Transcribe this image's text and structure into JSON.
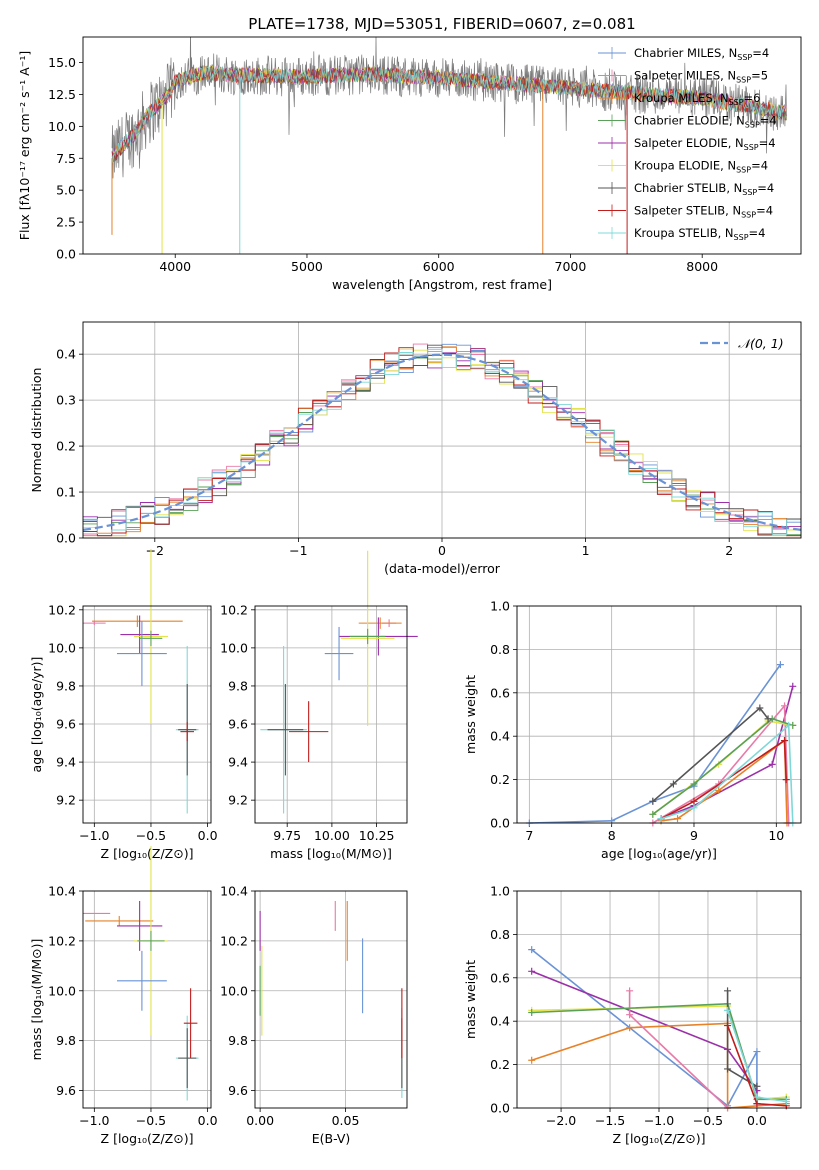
{
  "chart_data": [
    {
      "id": "spectrum",
      "type": "line",
      "title": "PLATE=1738, MJD=53051, FIBERID=0607, z=0.081",
      "xlabel": "wavelength [Angstrom, rest frame]",
      "ylabel": "Flux [fλ10⁻¹⁷ erg cm⁻² s⁻¹ A⁻¹]",
      "xlim": [
        3300,
        8750
      ],
      "ylim": [
        0,
        17
      ],
      "xticks": [
        4000,
        5000,
        6000,
        7000,
        8000
      ],
      "yticks": [
        0.0,
        2.5,
        5.0,
        7.5,
        10.0,
        12.5,
        15.0
      ],
      "grid": false,
      "legend_position": "top-right",
      "legend": [
        {
          "base": "Chabrier MILES, N",
          "sub": "SSP",
          "tail": "=4",
          "color": "#6a93d6"
        },
        {
          "base": "Salpeter MILES, N",
          "sub": "SSP",
          "tail": "=5",
          "color": "#e879a8"
        },
        {
          "base": "Kroupa MILES, N",
          "sub": "SSP",
          "tail": "=6",
          "color": "#e5822a"
        },
        {
          "base": "Chabrier ELODIE, N",
          "sub": "SSP",
          "tail": "=4",
          "color": "#5aa05a"
        },
        {
          "base": "Salpeter ELODIE, N",
          "sub": "SSP",
          "tail": "=4",
          "color": "#9b30a8"
        },
        {
          "base": "Kroupa ELODIE, N",
          "sub": "SSP",
          "tail": "=4",
          "color": "#e3e34a"
        },
        {
          "base": "Chabrier STELIB, N",
          "sub": "SSP",
          "tail": "=4",
          "color": "#555555"
        },
        {
          "base": "Salpeter STELIB, N",
          "sub": "SSP",
          "tail": "=4",
          "color": "#c01d1d"
        },
        {
          "base": "Kroupa STELIB, N",
          "sub": "SSP",
          "tail": "=4",
          "color": "#7fd8d8"
        }
      ],
      "continuum": [
        [
          3520,
          7.5
        ],
        [
          3600,
          8.5
        ],
        [
          3700,
          9.5
        ],
        [
          3800,
          11.0
        ],
        [
          3950,
          12.5
        ],
        [
          4000,
          13.5
        ],
        [
          4200,
          14.2
        ],
        [
          4500,
          14.0
        ],
        [
          5000,
          13.9
        ],
        [
          5500,
          14.1
        ],
        [
          6000,
          13.8
        ],
        [
          6500,
          13.4
        ],
        [
          7000,
          13.0
        ],
        [
          7500,
          12.6
        ],
        [
          8000,
          12.2
        ],
        [
          8500,
          11.3
        ],
        [
          8640,
          11.0
        ]
      ],
      "dropouts": [
        [
          3520,
          1.5,
          "#e5822a"
        ],
        [
          3900,
          0.0,
          "#e3e34a"
        ],
        [
          4490,
          0.0,
          "#7fd8d8"
        ],
        [
          6790,
          0.0,
          "#e5822a"
        ],
        [
          7430,
          0.0,
          "#c01d1d"
        ]
      ]
    },
    {
      "id": "residuals",
      "type": "line",
      "xlabel": "(data-model)/error",
      "ylabel": "Normed distribution",
      "xlim": [
        -2.5,
        2.5
      ],
      "ylim": [
        0,
        0.47
      ],
      "xticks": [
        -2,
        -1,
        0,
        1,
        2
      ],
      "yticks": [
        0.0,
        0.1,
        0.2,
        0.3,
        0.4
      ],
      "grid": true,
      "legend": "𝒩(0, 1)",
      "legend_position": "top-right",
      "gaussian": {
        "mean": 0,
        "sigma": 1,
        "color": "#6a93d6"
      }
    },
    {
      "id": "age-vs-z",
      "type": "scatter",
      "xlabel": "Z [log₁₀(Z/Z⊙)]",
      "ylabel": "age  [log₁₀(age/yr)]",
      "xlim": [
        -1.1,
        0.03
      ],
      "ylim": [
        9.08,
        10.22
      ],
      "xticks": [
        -1.0,
        -0.5,
        0.0
      ],
      "yticks": [
        9.2,
        9.4,
        9.6,
        9.8,
        10.0,
        10.2
      ],
      "grid": true,
      "points": [
        {
          "x": -1.0,
          "y": 10.13,
          "xerr": 0.1,
          "yerr": 0.01,
          "color": "#e879a8"
        },
        {
          "x": -0.62,
          "y": 10.14,
          "xerr": 0.4,
          "yerr": 0.03,
          "color": "#e5822a"
        },
        {
          "x": -0.6,
          "y": 10.07,
          "xerr": 0.17,
          "yerr": 0.1,
          "color": "#9b30a8"
        },
        {
          "x": -0.5,
          "y": 10.06,
          "xerr": 0.15,
          "yerr": 0.46,
          "color": "#e3e34a"
        },
        {
          "x": -0.5,
          "y": 10.05,
          "xerr": 0.1,
          "yerr": 0.04,
          "color": "#5aa05a"
        },
        {
          "x": -0.58,
          "y": 9.97,
          "xerr": 0.22,
          "yerr": 0.17,
          "color": "#6a93d6"
        },
        {
          "x": -0.18,
          "y": 9.57,
          "xerr": 0.1,
          "yerr": 0.44,
          "color": "#7fd8d8"
        },
        {
          "x": -0.18,
          "y": 9.57,
          "xerr": 0.08,
          "yerr": 0.24,
          "color": "#555555"
        },
        {
          "x": -0.18,
          "y": 9.56,
          "xerr": 0.06,
          "yerr": 0.05,
          "color": "#c01d1d"
        }
      ]
    },
    {
      "id": "age-vs-mass",
      "type": "scatter",
      "xlabel": "mass [log₁₀(M/M⊙)]",
      "ylabel": "",
      "xlim": [
        9.57,
        10.42
      ],
      "ylim": [
        9.08,
        10.22
      ],
      "xticks": [
        9.75,
        10.0,
        10.25
      ],
      "yticks": [
        9.2,
        9.4,
        9.6,
        9.8,
        10.0,
        10.2
      ],
      "grid": true,
      "points": [
        {
          "x": 10.32,
          "y": 10.13,
          "xerr": 0.04,
          "yerr": 0.02,
          "color": "#e879a8"
        },
        {
          "x": 10.27,
          "y": 10.13,
          "xerr": 0.12,
          "yerr": 0.03,
          "color": "#e5822a"
        },
        {
          "x": 10.26,
          "y": 10.06,
          "xerr": 0.22,
          "yerr": 0.1,
          "color": "#9b30a8"
        },
        {
          "x": 10.2,
          "y": 10.05,
          "xerr": 0.15,
          "yerr": 0.46,
          "color": "#e3e34a"
        },
        {
          "x": 10.2,
          "y": 10.06,
          "xerr": 0.1,
          "yerr": 0.04,
          "color": "#5aa05a"
        },
        {
          "x": 10.04,
          "y": 9.97,
          "xerr": 0.08,
          "yerr": 0.14,
          "color": "#6a93d6"
        },
        {
          "x": 9.73,
          "y": 9.57,
          "xerr": 0.13,
          "yerr": 0.44,
          "color": "#7fd8d8"
        },
        {
          "x": 9.74,
          "y": 9.57,
          "xerr": 0.1,
          "yerr": 0.24,
          "color": "#555555"
        },
        {
          "x": 9.87,
          "y": 9.56,
          "xerr": 0.11,
          "yerr": 0.16,
          "color": "#c01d1d"
        }
      ]
    },
    {
      "id": "massweight-vs-age",
      "type": "line",
      "xlabel": "age  [log₁₀(age/yr)]",
      "ylabel": "mass weight",
      "xlim": [
        6.85,
        10.3
      ],
      "ylim": [
        0,
        1.0
      ],
      "xticks": [
        7,
        8,
        9,
        10
      ],
      "yticks": [
        0.0,
        0.2,
        0.4,
        0.6,
        0.8,
        1.0
      ],
      "grid": true,
      "series": [
        {
          "color": "#6a93d6",
          "x": [
            7.0,
            8.0,
            8.5,
            9.0,
            10.05
          ],
          "y": [
            0.0,
            0.01,
            0.1,
            0.17,
            0.73
          ]
        },
        {
          "color": "#9b30a8",
          "x": [
            8.6,
            9.0,
            9.95,
            10.2
          ],
          "y": [
            0.02,
            0.08,
            0.27,
            0.63
          ]
        },
        {
          "color": "#e5822a",
          "x": [
            8.6,
            8.8,
            9.3,
            10.1,
            10.13
          ],
          "y": [
            0.01,
            0.02,
            0.15,
            0.38,
            0.0
          ]
        },
        {
          "color": "#e879a8",
          "x": [
            8.5,
            9.3,
            10.1,
            10.15
          ],
          "y": [
            0.0,
            0.18,
            0.54,
            0.0
          ]
        },
        {
          "color": "#e3e34a",
          "x": [
            8.5,
            9.3,
            9.9,
            10.2
          ],
          "y": [
            0.04,
            0.27,
            0.47,
            0.45
          ]
        },
        {
          "color": "#5aa05a",
          "x": [
            8.5,
            9.0,
            9.95,
            10.2
          ],
          "y": [
            0.04,
            0.18,
            0.48,
            0.45
          ]
        },
        {
          "color": "#555555",
          "x": [
            8.5,
            8.75,
            9.8,
            9.9
          ],
          "y": [
            0.1,
            0.18,
            0.53,
            0.48
          ]
        },
        {
          "color": "#c01d1d",
          "x": [
            8.6,
            9.0,
            10.1,
            10.12
          ],
          "y": [
            0.02,
            0.1,
            0.38,
            0.2
          ]
        },
        {
          "color": "#7fd8d8",
          "x": [
            8.6,
            9.0,
            10.15,
            10.2
          ],
          "y": [
            0.02,
            0.07,
            0.45,
            0.0
          ]
        }
      ]
    },
    {
      "id": "mass-vs-z",
      "type": "scatter",
      "xlabel": "Z [log₁₀(Z/Z⊙)]",
      "ylabel": "mass [log₁₀(M/M⊙)]",
      "xlim": [
        -1.1,
        0.03
      ],
      "ylim": [
        9.53,
        10.4
      ],
      "xticks": [
        -1.0,
        -0.5,
        0.0
      ],
      "yticks": [
        9.6,
        9.8,
        10.0,
        10.2,
        10.4
      ],
      "grid": true,
      "points": [
        {
          "x": -0.98,
          "y": 10.31,
          "xerr": 0.12,
          "yerr": 0.0,
          "color": "#e879a8"
        },
        {
          "x": -0.78,
          "y": 10.28,
          "xerr": 0.3,
          "yerr": 0.02,
          "color": "#e5822a"
        },
        {
          "x": -0.6,
          "y": 10.26,
          "xerr": 0.2,
          "yerr": 0.1,
          "color": "#9b30a8"
        },
        {
          "x": -0.5,
          "y": 10.2,
          "xerr": 0.15,
          "yerr": 0.38,
          "color": "#e3e34a"
        },
        {
          "x": -0.5,
          "y": 10.2,
          "xerr": 0.12,
          "yerr": 0.04,
          "color": "#5aa05a"
        },
        {
          "x": -0.58,
          "y": 10.04,
          "xerr": 0.22,
          "yerr": 0.12,
          "color": "#6a93d6"
        },
        {
          "x": -0.18,
          "y": 9.73,
          "xerr": 0.1,
          "yerr": 0.17,
          "color": "#7fd8d8"
        },
        {
          "x": -0.18,
          "y": 9.73,
          "xerr": 0.08,
          "yerr": 0.12,
          "color": "#555555"
        },
        {
          "x": -0.15,
          "y": 9.87,
          "xerr": 0.06,
          "yerr": 0.14,
          "color": "#c01d1d"
        }
      ]
    },
    {
      "id": "mass-vs-ebv",
      "type": "scatter",
      "xlabel": "E(B-V)",
      "ylabel": "",
      "xlim": [
        -0.003,
        0.086
      ],
      "ylim": [
        9.53,
        10.4
      ],
      "xticks": [
        0.0,
        0.05
      ],
      "xticklabels": [
        "0.00",
        "0.05"
      ],
      "yticks": [
        9.6,
        9.8,
        10.0,
        10.2,
        10.4
      ],
      "grid": true,
      "points": [
        {
          "x": 0.044,
          "y": 10.3,
          "xerr": 0.0,
          "yerr": 0.06,
          "color": "#e879a8"
        },
        {
          "x": 0.051,
          "y": 10.24,
          "xerr": 0.0,
          "yerr": 0.12,
          "color": "#e5822a"
        },
        {
          "x": 0.0,
          "y": 10.24,
          "xerr": 0.0,
          "yerr": 0.08,
          "color": "#9b30a8"
        },
        {
          "x": 0.001,
          "y": 10.0,
          "xerr": 0.0,
          "yerr": 0.18,
          "color": "#e3e34a"
        },
        {
          "x": 0.0,
          "y": 10.0,
          "xerr": 0.0,
          "yerr": 0.1,
          "color": "#5aa05a"
        },
        {
          "x": 0.06,
          "y": 10.06,
          "xerr": 0.0,
          "yerr": 0.15,
          "color": "#6a93d6"
        },
        {
          "x": 0.083,
          "y": 9.75,
          "xerr": 0.0,
          "yerr": 0.18,
          "color": "#7fd8d8"
        },
        {
          "x": 0.083,
          "y": 9.75,
          "xerr": 0.0,
          "yerr": 0.14,
          "color": "#555555"
        },
        {
          "x": 0.083,
          "y": 9.87,
          "xerr": 0.0,
          "yerr": 0.14,
          "color": "#c01d1d"
        }
      ]
    },
    {
      "id": "massweight-vs-z",
      "type": "line",
      "xlabel": "Z [log₁₀(Z/Z⊙)]",
      "ylabel": "mass weight",
      "xlim": [
        -2.45,
        0.45
      ],
      "ylim": [
        0,
        1.0
      ],
      "xticks": [
        -2.0,
        -1.5,
        -1.0,
        -0.5,
        0.0
      ],
      "yticks": [
        0.0,
        0.2,
        0.4,
        0.6,
        0.8,
        1.0
      ],
      "grid": true,
      "series": [
        {
          "color": "#6a93d6",
          "x": [
            -2.3,
            -0.3,
            0.0,
            0.0
          ],
          "y": [
            0.73,
            0.01,
            0.26,
            0.02
          ]
        },
        {
          "color": "#9b30a8",
          "x": [
            -2.3,
            -0.3,
            0.0,
            0.0
          ],
          "y": [
            0.63,
            0.27,
            0.08,
            0.02
          ]
        },
        {
          "color": "#e5822a",
          "x": [
            -2.3,
            -1.3,
            -0.3,
            -0.3,
            0.3
          ],
          "y": [
            0.22,
            0.37,
            0.39,
            0.0,
            0.02
          ]
        },
        {
          "color": "#e879a8",
          "x": [
            -1.3,
            -1.3,
            -0.3
          ],
          "y": [
            0.54,
            0.43,
            0.0
          ]
        },
        {
          "color": "#e3e34a",
          "x": [
            -2.3,
            -0.3,
            0.0,
            0.3
          ],
          "y": [
            0.45,
            0.47,
            0.04,
            0.05
          ]
        },
        {
          "color": "#5aa05a",
          "x": [
            -2.3,
            -0.3,
            0.0,
            0.3
          ],
          "y": [
            0.44,
            0.48,
            0.04,
            0.04
          ]
        },
        {
          "color": "#555555",
          "x": [
            -0.3,
            -0.3,
            0.0
          ],
          "y": [
            0.54,
            0.18,
            0.1
          ]
        },
        {
          "color": "#c01d1d",
          "x": [
            -0.3,
            0.0,
            0.3
          ],
          "y": [
            0.38,
            0.02,
            0.01
          ]
        },
        {
          "color": "#7fd8d8",
          "x": [
            -0.3,
            0.0,
            0.3
          ],
          "y": [
            0.45,
            0.05,
            0.03
          ]
        }
      ]
    }
  ]
}
